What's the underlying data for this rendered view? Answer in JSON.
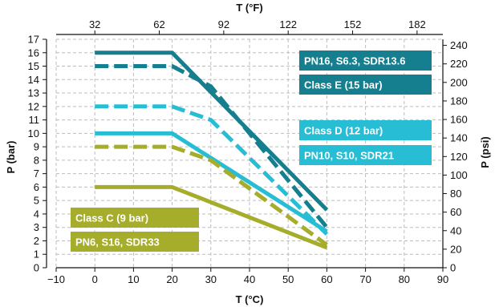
{
  "chart_data": {
    "type": "line",
    "bottom_axis": {
      "title": "T (°C)",
      "range": [
        -10,
        90
      ],
      "ticks": [
        -10,
        0,
        10,
        20,
        30,
        40,
        50,
        60,
        70,
        80,
        90
      ],
      "tick_labels": [
        "−10",
        "0",
        "10",
        "20",
        "30",
        "40",
        "50",
        "60",
        "70",
        "80",
        "90"
      ]
    },
    "top_axis": {
      "title": "T (°F)",
      "ticks": [
        32,
        62,
        92,
        122,
        152,
        182
      ]
    },
    "left_axis": {
      "title": "P (bar)",
      "range": [
        0,
        17
      ],
      "ticks": [
        0,
        1,
        2,
        3,
        4,
        5,
        6,
        7,
        8,
        9,
        10,
        11,
        12,
        13,
        14,
        15,
        16,
        17
      ]
    },
    "right_axis": {
      "title": "P (psi)",
      "ticks": [
        0,
        20,
        40,
        60,
        80,
        100,
        120,
        140,
        160,
        180,
        200,
        220,
        240
      ]
    },
    "grid": "dashed vertical and horizontal",
    "colors": {
      "teal": "#157f8f",
      "cyan": "#27bdd4",
      "olive": "#a6ad2a",
      "grid": "#bdbdbd"
    },
    "series": [
      {
        "label": "PN16, S6.3, SDR13.6",
        "color": "#157f8f",
        "style": "solid",
        "x": [
          0,
          20,
          60
        ],
        "y": [
          16,
          16,
          4.3
        ]
      },
      {
        "label": "Class E (15 bar)",
        "color": "#157f8f",
        "style": "dashed",
        "x": [
          0,
          20,
          30,
          60
        ],
        "y": [
          15,
          15,
          13.5,
          3
        ]
      },
      {
        "label": "Class D (12 bar)",
        "color": "#27bdd4",
        "style": "dashed",
        "x": [
          0,
          20,
          30,
          60
        ],
        "y": [
          12,
          12,
          11,
          2.5
        ]
      },
      {
        "label": "PN10, S10, SDR21",
        "color": "#27bdd4",
        "style": "solid",
        "x": [
          0,
          20,
          60
        ],
        "y": [
          10,
          10,
          2.7
        ]
      },
      {
        "label": "Class C (9 bar)",
        "color": "#a6ad2a",
        "style": "dashed",
        "x": [
          0,
          20,
          30,
          60
        ],
        "y": [
          9,
          9,
          8,
          1.7
        ]
      },
      {
        "label": "PN6, S16, SDR33",
        "color": "#a6ad2a",
        "style": "solid",
        "x": [
          0,
          20,
          60
        ],
        "y": [
          6,
          6,
          1.5
        ]
      }
    ],
    "badges": [
      {
        "text": "PN16, S6.3, SDR13.6",
        "color": "#157f8f"
      },
      {
        "text": "Class E (15 bar)",
        "color": "#157f8f"
      },
      {
        "text": "Class D (12 bar)",
        "color": "#27bdd4"
      },
      {
        "text": "PN10, S10, SDR21",
        "color": "#27bdd4"
      },
      {
        "text": "Class C (9 bar)",
        "color": "#a6ad2a"
      },
      {
        "text": "PN6, S16, SDR33",
        "color": "#a6ad2a"
      }
    ]
  }
}
